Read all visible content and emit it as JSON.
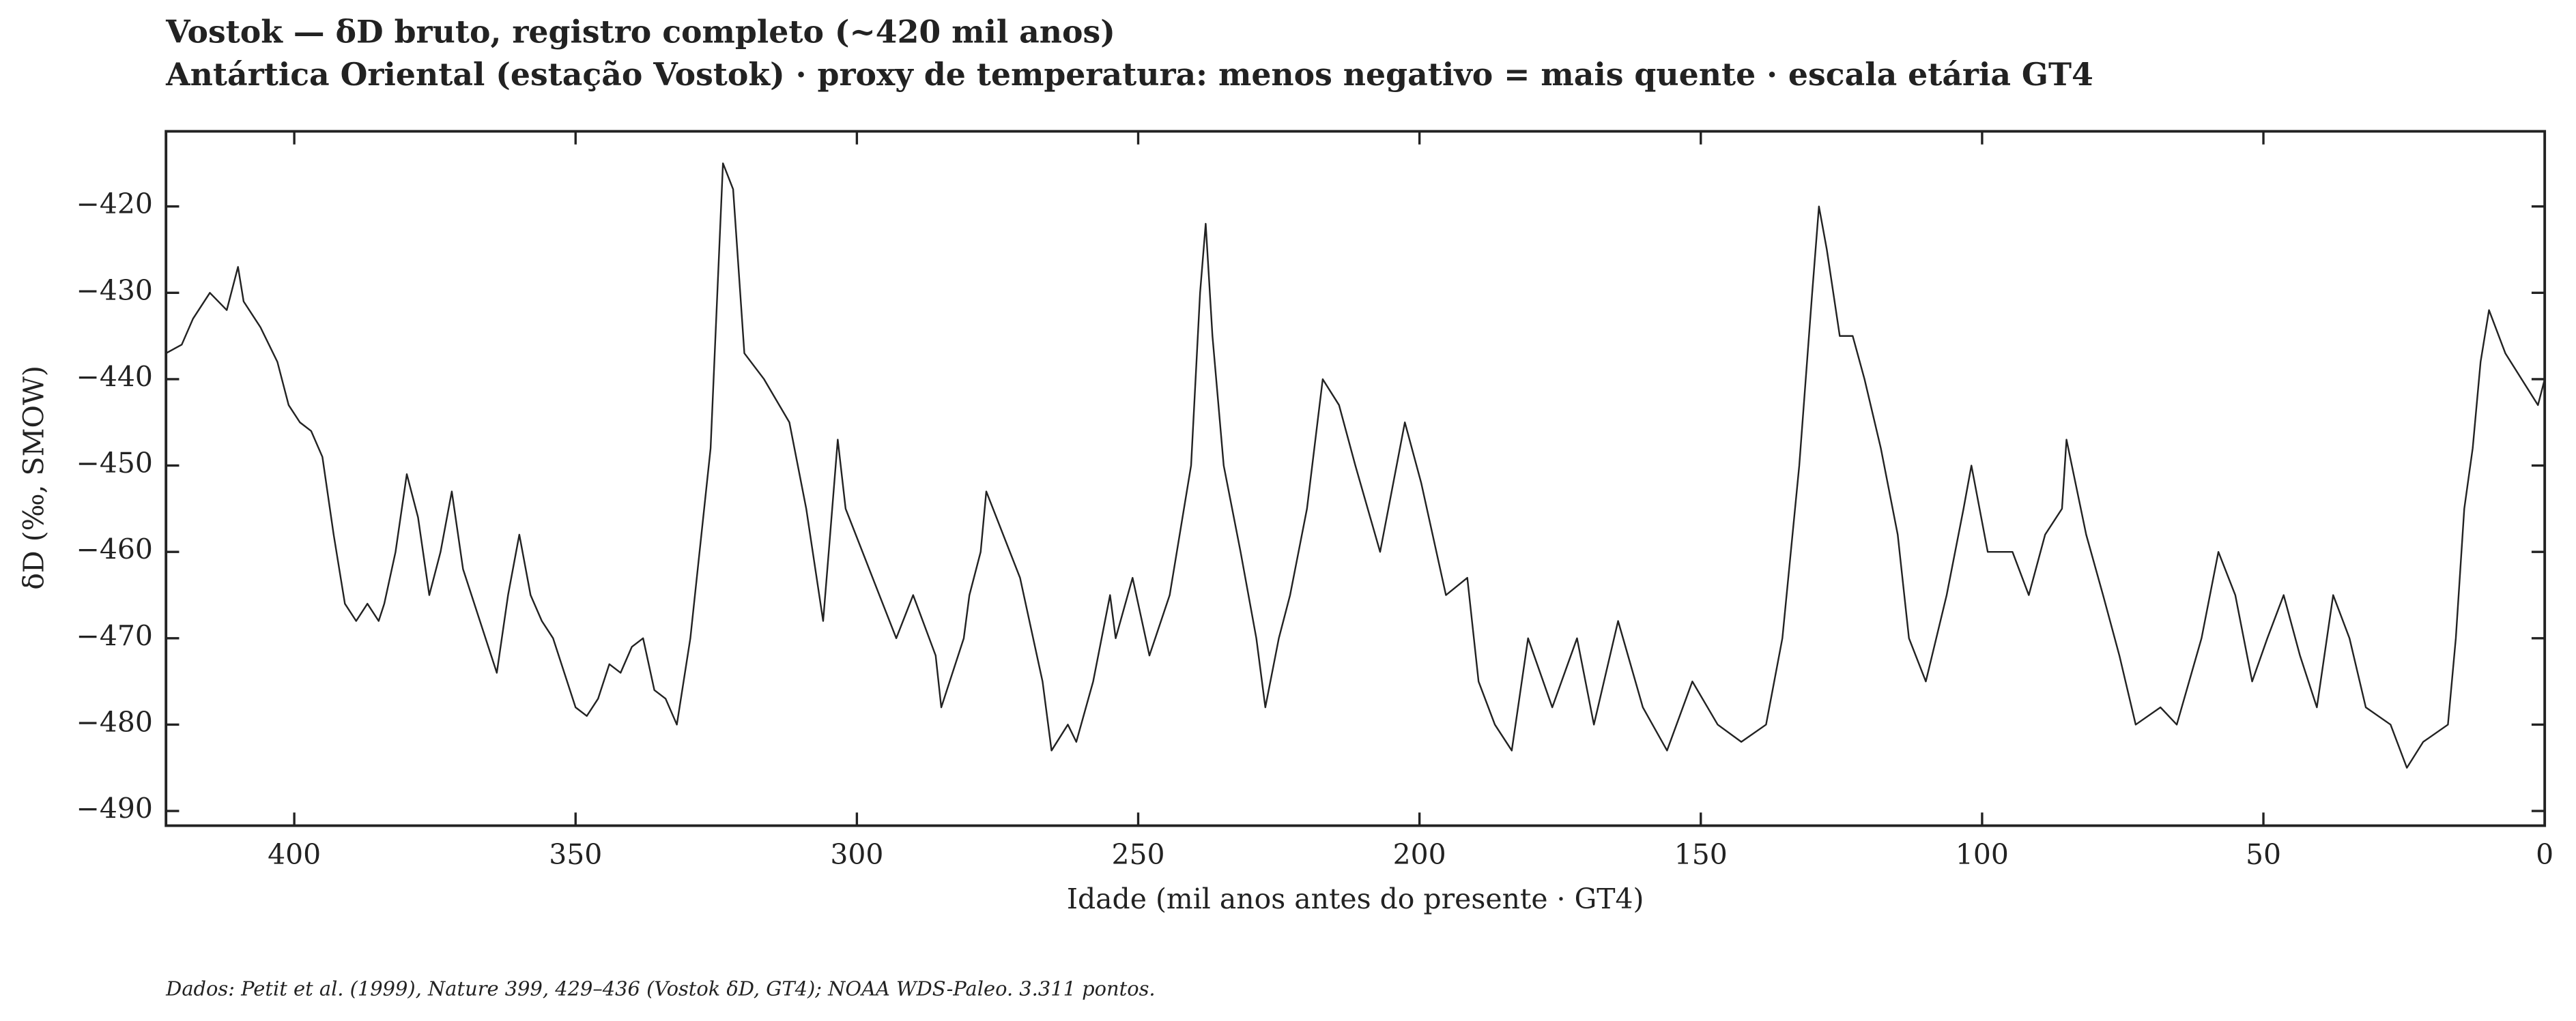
{
  "chart_data": {
    "type": "line",
    "title": "Vostok — δD bruto, registro completo (~420 mil anos)",
    "subtitle": "Antártica Oriental (estação Vostok) · proxy de temperatura: menos negativo = mais quente · escala etária GT4",
    "x_label": "Idade (mil anos antes do presente · GT4)",
    "y_label": "δD (‰, SMOW)",
    "footer": "Dados: Petit et al. (1999), Nature 399, 429–436 (Vostok δD, GT4); NOAA WDS-Paleo. 3.311 pontos.",
    "xlim": [
      422.8,
      0
    ],
    "ylim": [
      -491.7,
      -411.3
    ],
    "xticks": [
      400,
      350,
      300,
      250,
      200,
      150,
      100,
      50,
      0
    ],
    "yticks": [
      {
        "value": -420,
        "label": "−420"
      },
      {
        "value": -430,
        "label": "−430"
      },
      {
        "value": -440,
        "label": "−440"
      },
      {
        "value": -450,
        "label": "−450"
      },
      {
        "value": -460,
        "label": "−460"
      },
      {
        "value": -470,
        "label": "−470"
      },
      {
        "value": -480,
        "label": "−480"
      },
      {
        "value": -490,
        "label": "−490"
      }
    ],
    "series": [
      {
        "color": "#222222",
        "x": [
          422.8,
          420,
          418,
          415,
          412,
          410,
          409,
          406,
          403,
          401,
          399,
          397,
          395,
          393,
          391,
          389,
          387,
          385,
          384,
          382,
          380,
          378,
          376,
          374,
          372,
          370,
          368,
          366,
          364,
          362,
          360,
          358,
          356,
          354,
          352,
          350,
          348,
          346,
          344,
          342,
          340,
          338,
          336,
          334,
          332,
          329.6,
          326,
          323.8,
          322,
          320,
          316.5,
          312,
          309,
          306,
          305,
          303.4,
          302,
          299,
          296,
          293,
          290,
          286,
          285,
          281,
          280,
          278,
          277,
          274,
          271,
          267,
          265.4,
          262.5,
          261,
          258,
          255,
          254,
          251,
          248,
          244.4,
          240.6,
          239,
          238,
          236.8,
          234.8,
          231.8,
          229,
          227.4,
          225,
          223,
          220,
          217.2,
          214.3,
          211.4,
          207,
          202.6,
          199.7,
          195.3,
          191.5,
          189.5,
          186.6,
          183.6,
          180.7,
          176.4,
          172,
          169,
          164.7,
          160.3,
          156,
          151.5,
          147,
          142.8,
          138.4,
          135.5,
          132.5,
          130.2,
          129,
          127.6,
          125.3,
          123,
          120.9,
          118,
          115,
          113,
          110,
          106.3,
          103.3,
          101.9,
          99,
          94.6,
          91.7,
          88.8,
          85.8,
          85,
          81.5,
          78.5,
          75.6,
          72.7,
          68.3,
          65.4,
          61,
          58,
          55,
          52,
          49.3,
          46.4,
          43.5,
          40.5,
          37.6,
          34.7,
          31.8,
          27.4,
          24.5,
          21.6,
          17.2,
          15.8,
          14.3,
          12.8,
          11.4,
          9.9,
          7,
          4.1,
          1.2,
          0
        ],
        "values": [
          -437,
          -436,
          -433,
          -430,
          -432,
          -427,
          -431,
          -434,
          -438,
          -443,
          -445,
          -446,
          -449,
          -458,
          -466,
          -468,
          -466,
          -468,
          -466,
          -460,
          -451,
          -456,
          -465,
          -460,
          -453,
          -462,
          -466,
          -470,
          -474,
          -465,
          -458,
          -465,
          -468,
          -470,
          -474,
          -478,
          -479,
          -477,
          -473,
          -474,
          -471,
          -470,
          -476,
          -477,
          -480,
          -470,
          -448,
          -415,
          -418,
          -437,
          -440,
          -445,
          -455,
          -468,
          -460,
          -447,
          -455,
          -460,
          -465,
          -470,
          -465,
          -472,
          -478,
          -470,
          -465,
          -460,
          -453,
          -458,
          -463,
          -475,
          -483,
          -480,
          -482,
          -475,
          -465,
          -470,
          -463,
          -472,
          -465,
          -450,
          -430,
          -422,
          -435,
          -450,
          -460,
          -470,
          -478,
          -470,
          -465,
          -455,
          -440,
          -443,
          -450,
          -460,
          -445,
          -452,
          -465,
          -463,
          -475,
          -480,
          -483,
          -470,
          -478,
          -470,
          -480,
          -468,
          -478,
          -483,
          -475,
          -480,
          -482,
          -480,
          -470,
          -450,
          -430,
          -420,
          -425,
          -435,
          -435,
          -440,
          -448,
          -458,
          -470,
          -475,
          -465,
          -455,
          -450,
          -460,
          -460,
          -465,
          -458,
          -455,
          -447,
          -458,
          -465,
          -472,
          -480,
          -478,
          -480,
          -470,
          -460,
          -465,
          -475,
          -470,
          -465,
          -472,
          -478,
          -465,
          -470,
          -478,
          -480,
          -485,
          -482,
          -480,
          -470,
          -455,
          -448,
          -438,
          -432,
          -437,
          -440,
          -443,
          -440
        ]
      }
    ]
  }
}
